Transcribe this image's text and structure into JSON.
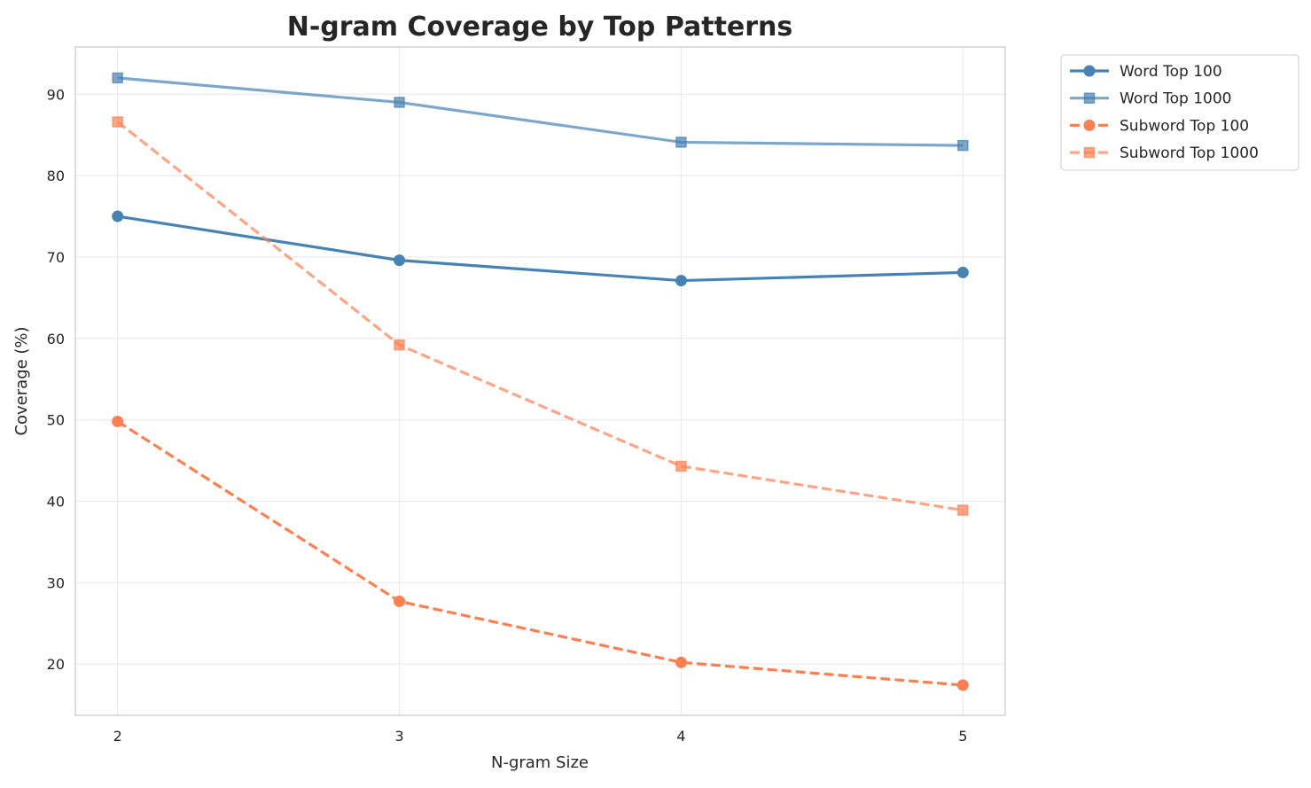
{
  "chart_data": {
    "type": "line",
    "title": "N-gram Coverage by Top Patterns",
    "xlabel": "N-gram Size",
    "ylabel": "Coverage (%)",
    "x": [
      2,
      3,
      4,
      5
    ],
    "xticks": [
      "2",
      "3",
      "4",
      "5"
    ],
    "yticks": [
      "20",
      "30",
      "40",
      "50",
      "60",
      "70",
      "80",
      "90"
    ],
    "xlim": [
      1.85,
      5.15
    ],
    "ylim": [
      13.7,
      95.8
    ],
    "grid": true,
    "legend_position": "outside-top-right",
    "series": [
      {
        "name": "Word Top 100",
        "values": [
          75.0,
          69.6,
          67.1,
          68.1
        ],
        "color": "#4682b4",
        "opacity": 1,
        "dash": false,
        "marker": "circle"
      },
      {
        "name": "Word Top 1000",
        "values": [
          92.0,
          89.0,
          84.1,
          83.7
        ],
        "color": "#4682b4",
        "opacity": 0.7,
        "dash": false,
        "marker": "square"
      },
      {
        "name": "Subword Top 100",
        "values": [
          49.8,
          27.7,
          20.2,
          17.4
        ],
        "color": "#ff7f50",
        "opacity": 1,
        "dash": true,
        "marker": "circle"
      },
      {
        "name": "Subword Top 1000",
        "values": [
          86.6,
          59.2,
          44.3,
          38.9
        ],
        "color": "#ff7f50",
        "opacity": 0.7,
        "dash": true,
        "marker": "square"
      }
    ]
  }
}
